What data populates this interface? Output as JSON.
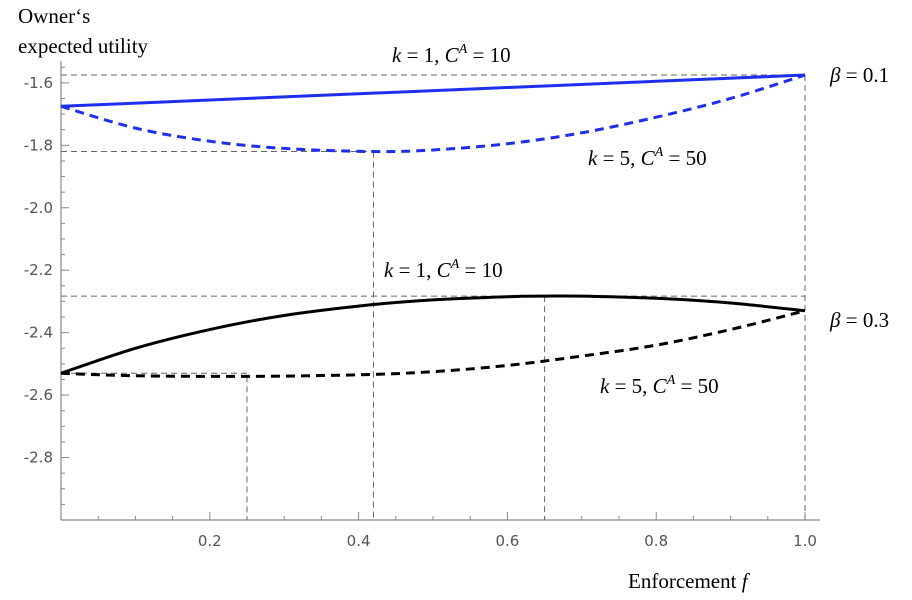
{
  "chart_data": {
    "type": "line",
    "title": "",
    "xlabel": "Enforcement",
    "xlabel_var": "f",
    "ylabel_line1": "Owner‘s",
    "ylabel_line2": "expected utility",
    "xlim": [
      0,
      1
    ],
    "ylim": [
      -3.0,
      -1.53
    ],
    "xticks": [
      0.2,
      0.4,
      0.6,
      0.8,
      1.0
    ],
    "xtick_labels": [
      "0.2",
      "0.4",
      "0.6",
      "0.8",
      "1.0"
    ],
    "yticks": [
      -1.6,
      -1.8,
      -2.0,
      -2.2,
      -2.4,
      -2.6,
      -2.8
    ],
    "ytick_labels": [
      "-1.6",
      "-1.8",
      "-2.0",
      "-2.2",
      "-2.4",
      "-2.6",
      "-2.8"
    ],
    "grid": false,
    "legend": "none",
    "colors": {
      "beta_01": "#1f2ff0",
      "beta_03": "#000000",
      "guide": "#666666"
    },
    "series": [
      {
        "group": "beta_01",
        "style": "solid",
        "x": [
          0,
          0.2,
          0.4,
          0.6,
          0.8,
          1.0
        ],
        "y": [
          -1.675,
          -1.655,
          -1.635,
          -1.615,
          -1.595,
          -1.575
        ]
      },
      {
        "group": "beta_01",
        "style": "dashed",
        "x": [
          0,
          0.1,
          0.2,
          0.3,
          0.42,
          0.5,
          0.6,
          0.7,
          0.8,
          0.9,
          1.0
        ],
        "y": [
          -1.675,
          -1.745,
          -1.787,
          -1.81,
          -1.82,
          -1.815,
          -1.795,
          -1.76,
          -1.71,
          -1.65,
          -1.575
        ]
      },
      {
        "group": "beta_03",
        "style": "solid",
        "x": [
          0,
          0.1,
          0.2,
          0.3,
          0.42,
          0.5,
          0.6,
          0.65,
          0.7,
          0.8,
          0.9,
          1.0
        ],
        "y": [
          -2.53,
          -2.45,
          -2.39,
          -2.345,
          -2.31,
          -2.295,
          -2.285,
          -2.283,
          -2.283,
          -2.29,
          -2.305,
          -2.33
        ]
      },
      {
        "group": "beta_03",
        "style": "dashed",
        "x": [
          0,
          0.1,
          0.25,
          0.4,
          0.5,
          0.6,
          0.7,
          0.8,
          0.9,
          1.0
        ],
        "y": [
          -2.53,
          -2.538,
          -2.54,
          -2.535,
          -2.525,
          -2.505,
          -2.475,
          -2.44,
          -2.39,
          -2.33
        ]
      }
    ],
    "guide_lines": {
      "horizontal": [
        {
          "y": -1.575,
          "x_to": 1.0
        },
        {
          "y": -1.82,
          "x_to": 0.42
        },
        {
          "y": -2.283,
          "x_to": 1.0
        },
        {
          "y": -2.53,
          "x_to": 0.25
        }
      ],
      "vertical": [
        {
          "x": 0.42,
          "y_top": -1.82
        },
        {
          "x": 0.65,
          "y_top": -2.283
        },
        {
          "x": 0.25,
          "y_top": -2.54
        },
        {
          "x": 1.0,
          "y_top": -1.575
        }
      ]
    },
    "annotations": [
      {
        "id": "k1_beta01",
        "k_val": "1",
        "c_val": "10"
      },
      {
        "id": "k5_beta01",
        "k_val": "5",
        "c_val": "50"
      },
      {
        "id": "k1_beta03",
        "k_val": "1",
        "c_val": "10"
      },
      {
        "id": "k5_beta03",
        "k_val": "5",
        "c_val": "50"
      },
      {
        "id": "beta01",
        "beta_val": "0.1"
      },
      {
        "id": "beta03",
        "beta_val": "0.3"
      }
    ]
  }
}
